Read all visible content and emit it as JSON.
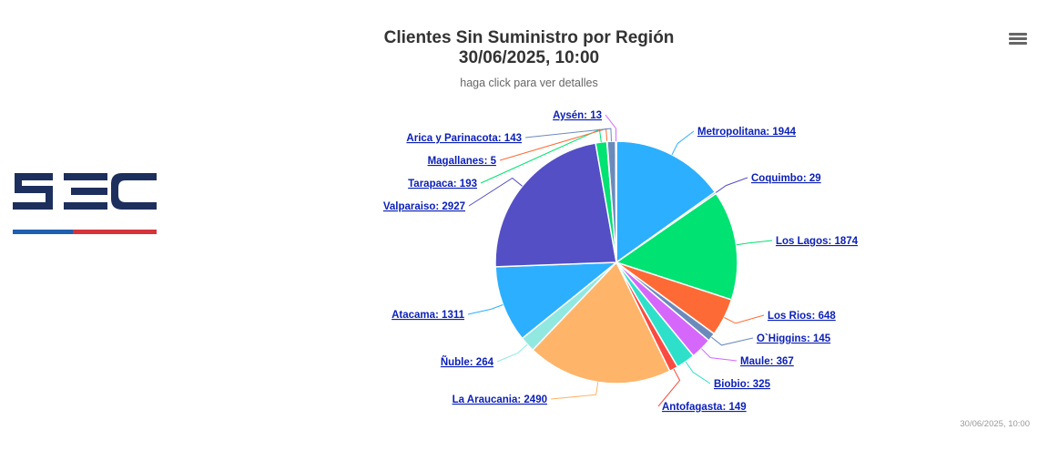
{
  "colors": {
    "logo_navy": "#1d2f5c",
    "logo_blue": "#1f5fb0",
    "logo_red": "#d6333a",
    "label_link": "#0b1fb5"
  },
  "logo": {
    "text": "SEC"
  },
  "header": {
    "title_line1": "Clientes Sin Suministro por Región",
    "title_line2": "30/06/2025, 10:00",
    "subtitle": "haga click para ver detalles",
    "menu_icon": "hamburger-menu-icon"
  },
  "credits": "30/06/2025, 10:00",
  "chart_data": {
    "type": "pie",
    "title": "Clientes Sin Suministro por Región 30/06/2025, 10:00",
    "subtitle": "haga click para ver detalles",
    "slices": [
      {
        "name": "Metropolitana",
        "value": 1944,
        "color": "#2caffe"
      },
      {
        "name": "Coquimbo",
        "value": 29,
        "color": "#544fc5"
      },
      {
        "name": "Los Lagos",
        "value": 1874,
        "color": "#00e272"
      },
      {
        "name": "Los Rios",
        "value": 648,
        "color": "#fe6a35"
      },
      {
        "name": "O`Higgins",
        "value": 145,
        "color": "#6b8abc"
      },
      {
        "name": "Maule",
        "value": 367,
        "color": "#d568fb"
      },
      {
        "name": "Biobio",
        "value": 325,
        "color": "#2ee0ca"
      },
      {
        "name": "Antofagasta",
        "value": 149,
        "color": "#fa4b42"
      },
      {
        "name": "La Araucania",
        "value": 2490,
        "color": "#feb56a"
      },
      {
        "name": "Ñuble",
        "value": 264,
        "color": "#91e8e1"
      },
      {
        "name": "Atacama",
        "value": 1311,
        "color": "#2caffe"
      },
      {
        "name": "Valparaiso",
        "value": 2927,
        "color": "#544fc5"
      },
      {
        "name": "Tarapaca",
        "value": 193,
        "color": "#00e272"
      },
      {
        "name": "Magallanes",
        "value": 5,
        "color": "#fe6a35"
      },
      {
        "name": "Arica y Parinacota",
        "value": 143,
        "color": "#6b8abc"
      },
      {
        "name": "Aysén",
        "value": 13,
        "color": "#d568fb"
      }
    ]
  }
}
